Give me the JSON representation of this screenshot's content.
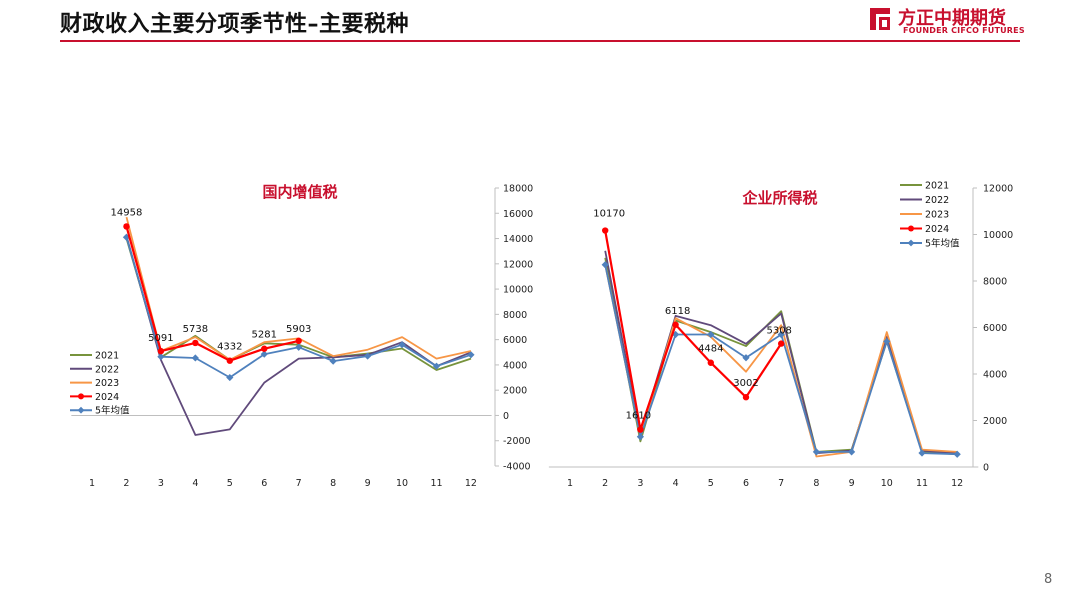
{
  "header": {
    "title": "财政收入主要分项季节性–主要税种",
    "logo_cn": "方正中期期货",
    "logo_en": "FOUNDER CIFCO FUTURES",
    "brand_color": "#c8102e"
  },
  "page_number": "8",
  "series_colors": {
    "2021": "#77933c",
    "2022": "#604a7b",
    "2023": "#f79646",
    "2024": "#ff0000",
    "5年均值": "#4f81bd"
  },
  "chart_data": [
    {
      "type": "line",
      "title": "国内增值税",
      "categories": [
        "1",
        "2",
        "3",
        "4",
        "5",
        "6",
        "7",
        "8",
        "9",
        "10",
        "11",
        "12"
      ],
      "ylim": [
        -4000,
        18000
      ],
      "yticks": [
        -4000,
        -2000,
        0,
        2000,
        4000,
        6000,
        8000,
        10000,
        12000,
        14000,
        16000,
        18000
      ],
      "legend_position": "left",
      "series": [
        {
          "name": "2021",
          "values": [
            null,
            14000,
            4600,
            6300,
            4400,
            5700,
            5600,
            4600,
            4900,
            5300,
            3600,
            4500
          ]
        },
        {
          "name": "2022",
          "values": [
            null,
            14200,
            4400,
            -1550,
            -1100,
            2600,
            4500,
            4600,
            4800,
            5800,
            3900,
            5000
          ]
        },
        {
          "name": "2023",
          "values": [
            null,
            15700,
            5100,
            6200,
            4400,
            5800,
            6100,
            4700,
            5200,
            6200,
            4500,
            5100
          ]
        },
        {
          "name": "2024",
          "values": [
            null,
            14958,
            5091,
            5738,
            4332,
            5281,
            5903,
            null,
            null,
            null,
            null,
            null
          ]
        },
        {
          "name": "5年均值",
          "values": [
            null,
            14100,
            4650,
            4550,
            3000,
            4850,
            5400,
            4300,
            4700,
            5600,
            3900,
            4800
          ]
        }
      ],
      "data_labels": [
        {
          "x": "2",
          "value": "14958"
        },
        {
          "x": "3",
          "value": "5091"
        },
        {
          "x": "4",
          "value": "5738"
        },
        {
          "x": "5",
          "value": "4332"
        },
        {
          "x": "6",
          "value": "5281"
        },
        {
          "x": "7",
          "value": "5903"
        }
      ]
    },
    {
      "type": "line",
      "title": "企业所得税",
      "categories": [
        "1",
        "2",
        "3",
        "4",
        "5",
        "6",
        "7",
        "8",
        "9",
        "10",
        "11",
        "12"
      ],
      "ylim": [
        0,
        12000
      ],
      "yticks": [
        0,
        2000,
        4000,
        6000,
        8000,
        10000,
        12000
      ],
      "legend_position": "top-right",
      "series": [
        {
          "name": "2021",
          "values": [
            null,
            9000,
            1100,
            6300,
            5800,
            5200,
            6700,
            650,
            750,
            5400,
            650,
            550
          ]
        },
        {
          "name": "2022",
          "values": [
            null,
            9300,
            1400,
            6500,
            6100,
            5300,
            6600,
            600,
            700,
            5600,
            700,
            600
          ]
        },
        {
          "name": "2023",
          "values": [
            null,
            8700,
            1300,
            6400,
            5600,
            4100,
            6100,
            450,
            650,
            5800,
            750,
            650
          ]
        },
        {
          "name": "2024",
          "values": [
            null,
            10170,
            1610,
            6118,
            4484,
            3002,
            5308,
            null,
            null,
            null,
            null,
            null
          ]
        },
        {
          "name": "5年均值",
          "values": [
            null,
            8700,
            1300,
            5700,
            5700,
            4700,
            5700,
            650,
            650,
            5400,
            600,
            550
          ]
        }
      ],
      "data_labels": [
        {
          "x": "2",
          "value": "10170"
        },
        {
          "x": "3",
          "value": "1610"
        },
        {
          "x": "4",
          "value": "6118"
        },
        {
          "x": "5",
          "value": "4484"
        },
        {
          "x": "6",
          "value": "3002"
        },
        {
          "x": "7",
          "value": "5308"
        }
      ]
    }
  ]
}
